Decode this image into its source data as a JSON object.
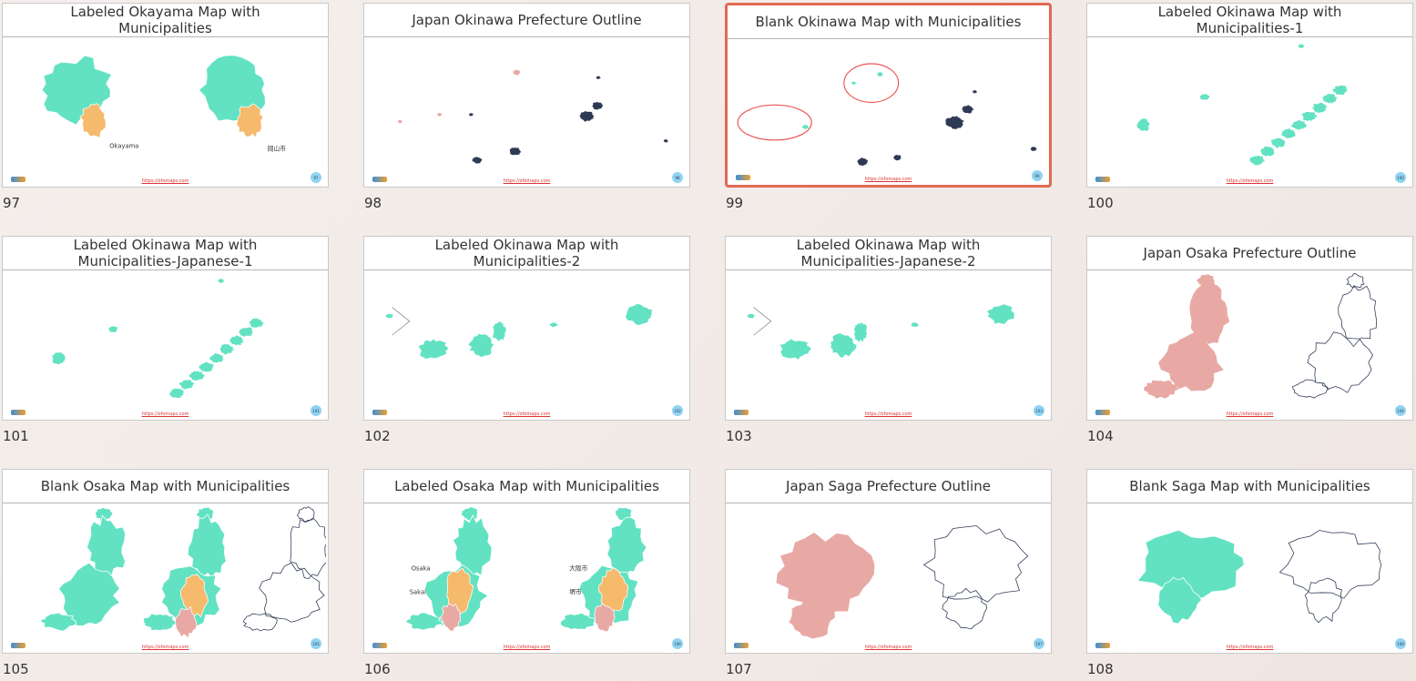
{
  "footer_url": "https://ofomaps.com",
  "slides": [
    {
      "number": 97,
      "title": "Labeled Okayama Map with Municipalities",
      "map_labels": [
        "Okayama",
        "岡山市"
      ]
    },
    {
      "number": 98,
      "title": "Japan Okinawa Prefecture Outline"
    },
    {
      "number": 99,
      "title": "Blank Okinawa Map with Municipalities",
      "selected": true
    },
    {
      "number": 100,
      "title": "Labeled Okinawa Map with Municipalities-1"
    },
    {
      "number": 101,
      "title": "Labeled Okinawa Map with Municipalities-Japanese-1"
    },
    {
      "number": 102,
      "title": "Labeled Okinawa Map with Municipalities-2"
    },
    {
      "number": 103,
      "title": "Labeled Okinawa Map with Municipalities-Japanese-2"
    },
    {
      "number": 104,
      "title": "Japan Osaka Prefecture Outline"
    },
    {
      "number": 105,
      "title": "Blank Osaka Map with Municipalities"
    },
    {
      "number": 106,
      "title": "Labeled Osaka Map with Municipalities",
      "map_labels": [
        "Osaka",
        "Sakai",
        "大阪市",
        "堺市"
      ]
    },
    {
      "number": 107,
      "title": "Japan Saga Prefecture Outline"
    },
    {
      "number": 108,
      "title": "Blank Saga Map with Municipalities"
    }
  ]
}
